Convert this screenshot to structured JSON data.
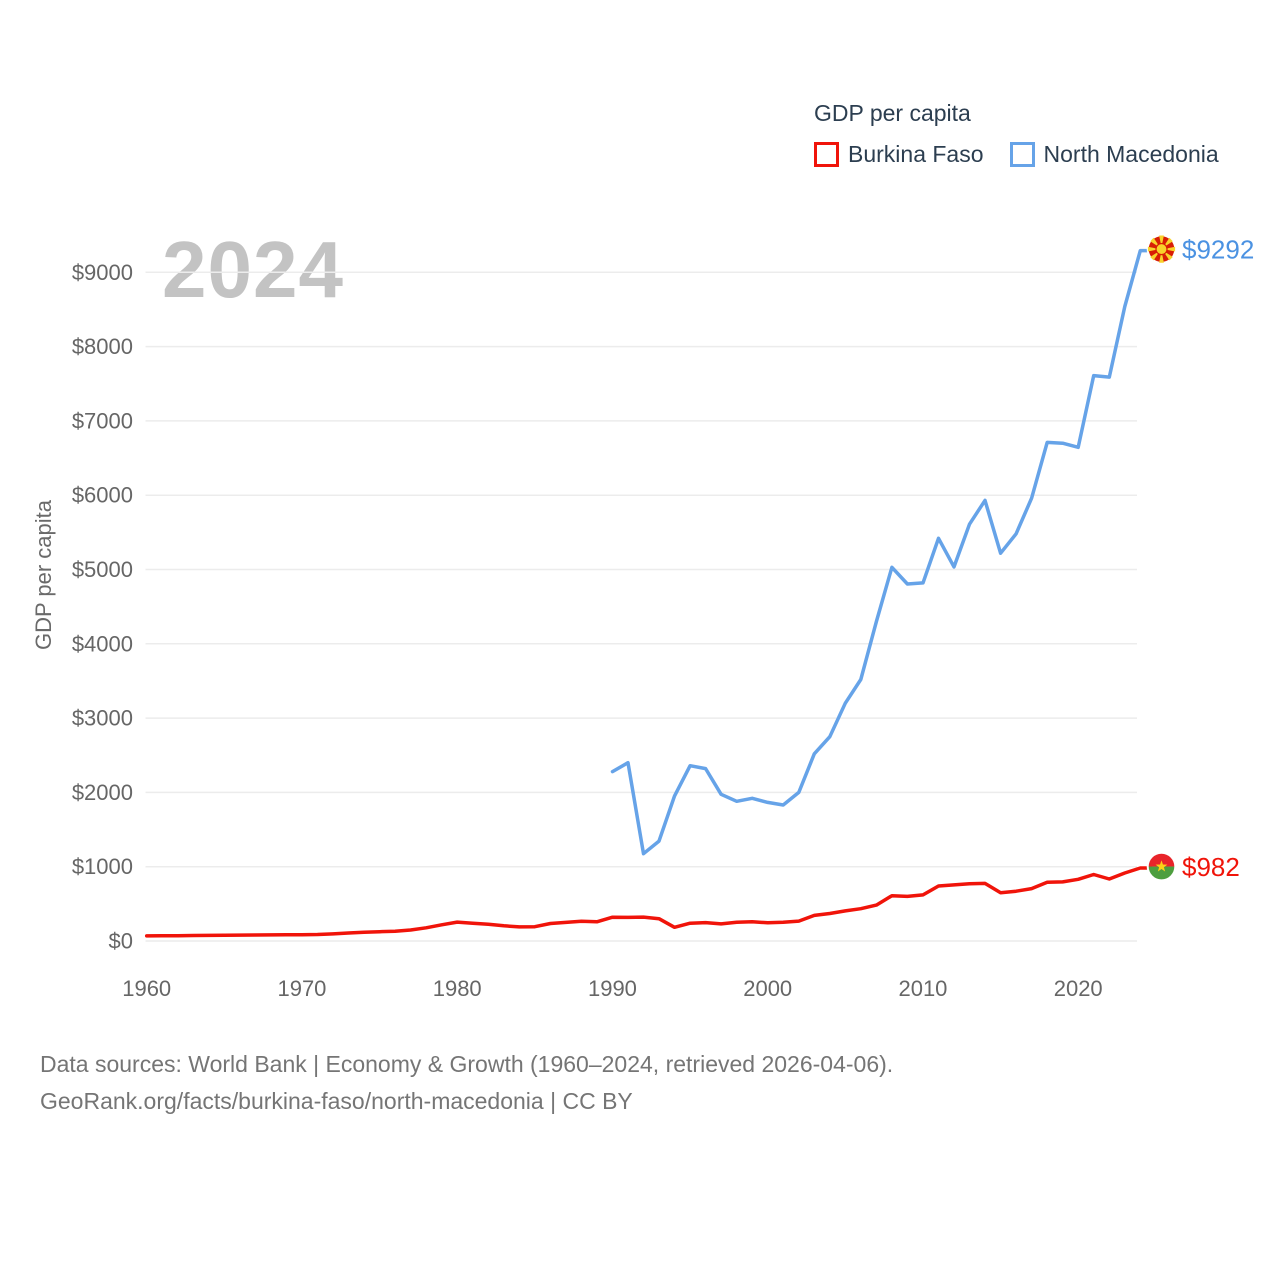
{
  "watermark_year": "2024",
  "legend": {
    "title": "GDP per capita"
  },
  "footer": {
    "line1": "Data sources: World Bank | Economy & Growth (1960–2024, retrieved 2026-04-06).",
    "line2": "GeoRank.org/facts/burkina-faso/north-macedonia | CC BY"
  },
  "colors": {
    "grid": "#ececec",
    "tick_text": "#666666",
    "legend_text": "#2c3e50",
    "watermark": "#c3c3c3",
    "source_text": "#757575",
    "burkina_red": "#f0140a",
    "macedonia_blue": "#66a3e8",
    "macedonia_label_blue": "#4b92e2"
  },
  "chart_data": {
    "type": "line",
    "title": "GDP per capita",
    "xlabel": "",
    "ylabel": "GDP per capita",
    "xlim": [
      1960,
      2024
    ],
    "ylim": [
      0,
      9300
    ],
    "grid": "horizontal",
    "legend_position": "top-right",
    "x_ticks": [
      1960,
      1970,
      1980,
      1990,
      2000,
      2010,
      2020
    ],
    "y_ticks": [
      0,
      1000,
      2000,
      3000,
      4000,
      5000,
      6000,
      7000,
      8000,
      9000
    ],
    "y_tick_prefix": "$",
    "series": [
      {
        "id": "burkina-faso",
        "name": "Burkina Faso",
        "color": "#f0140a",
        "label_color": "#f0140a",
        "end_label": "$982",
        "flag": "burkina-faso",
        "x": [
          1960,
          1961,
          1962,
          1963,
          1964,
          1965,
          1966,
          1967,
          1968,
          1969,
          1970,
          1971,
          1972,
          1973,
          1974,
          1975,
          1976,
          1977,
          1978,
          1979,
          1980,
          1981,
          1982,
          1983,
          1984,
          1985,
          1986,
          1987,
          1988,
          1989,
          1990,
          1991,
          1992,
          1993,
          1994,
          1995,
          1996,
          1997,
          1998,
          1999,
          2000,
          2001,
          2002,
          2003,
          2004,
          2005,
          2006,
          2007,
          2008,
          2009,
          2010,
          2011,
          2012,
          2013,
          2014,
          2015,
          2016,
          2017,
          2018,
          2019,
          2020,
          2021,
          2022,
          2023,
          2024
        ],
        "values": [
          68,
          70,
          72,
          74,
          76,
          78,
          80,
          81,
          82,
          83,
          85,
          88,
          96,
          108,
          118,
          125,
          132,
          148,
          178,
          218,
          254,
          240,
          225,
          205,
          190,
          192,
          235,
          250,
          265,
          258,
          320,
          318,
          322,
          300,
          185,
          240,
          248,
          230,
          252,
          258,
          245,
          252,
          268,
          345,
          370,
          405,
          435,
          483,
          610,
          600,
          620,
          740,
          755,
          770,
          775,
          650,
          670,
          705,
          790,
          795,
          830,
          895,
          835,
          915,
          982
        ]
      },
      {
        "id": "north-macedonia",
        "name": "North Macedonia",
        "color": "#66a3e8",
        "label_color": "#4b92e2",
        "end_label": "$9292",
        "flag": "north-macedonia",
        "x": [
          1990,
          1991,
          1992,
          1993,
          1994,
          1995,
          1996,
          1997,
          1998,
          1999,
          2000,
          2001,
          2002,
          2003,
          2004,
          2005,
          2006,
          2007,
          2008,
          2009,
          2010,
          2011,
          2012,
          2013,
          2014,
          2015,
          2016,
          2017,
          2018,
          2019,
          2020,
          2021,
          2022,
          2023,
          2024
        ],
        "values": [
          2280,
          2400,
          1175,
          1345,
          1950,
          2360,
          2320,
          1975,
          1880,
          1920,
          1865,
          1830,
          2000,
          2520,
          2750,
          3200,
          3520,
          4300,
          5030,
          4805,
          4820,
          5420,
          5035,
          5610,
          5930,
          5220,
          5480,
          5960,
          6710,
          6700,
          6645,
          7610,
          7590,
          8540,
          9292
        ]
      }
    ]
  }
}
